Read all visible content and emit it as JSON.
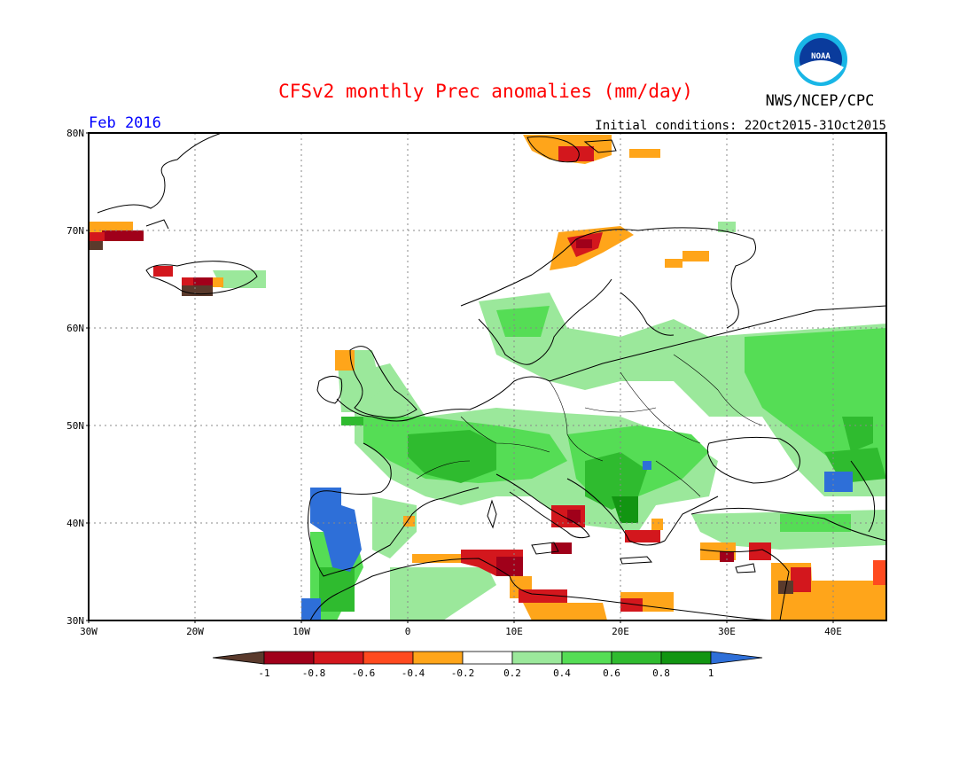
{
  "header": {
    "title": "CFSv2 monthly Prec anomalies (mm/day)",
    "agency": "NWS/NCEP/CPC",
    "logo_text": "NOAA",
    "month": "Feb 2016",
    "initial_conditions": "Initial conditions: 22Oct2015-31Oct2015"
  },
  "map": {
    "lat_labels": [
      "80N",
      "70N",
      "60N",
      "50N",
      "40N",
      "30N"
    ],
    "lon_labels": [
      "30W",
      "20W",
      "10W",
      "0",
      "10E",
      "20E",
      "30E",
      "40E"
    ],
    "lat_range": [
      30,
      80
    ],
    "lon_range": [
      -30,
      45
    ]
  },
  "legend": {
    "tick_labels": [
      "-1",
      "-0.8",
      "-0.6",
      "-0.4",
      "-0.2",
      "0.2",
      "0.4",
      "0.6",
      "0.8",
      "1"
    ],
    "colors": [
      "#5a3a2c",
      "#a0001a",
      "#d3171d",
      "#ff4a1f",
      "#ffa51a",
      "#ffffff",
      "#9be89b",
      "#55dd55",
      "#2fbb2f",
      "#129512",
      "#2e6fd8"
    ]
  },
  "colors": {
    "title": "#ff0000",
    "month": "#0000ff",
    "grid": "#888888"
  }
}
